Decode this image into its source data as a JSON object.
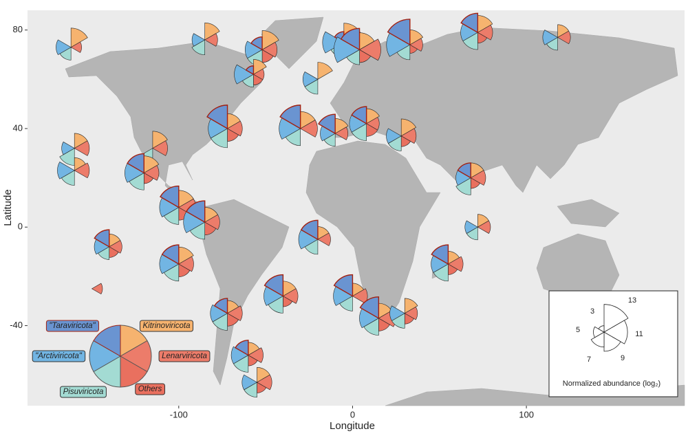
{
  "chart_data": {
    "type": "map",
    "xlabel": "Longitude",
    "ylabel": "Latitude",
    "xlim": [
      -187,
      191
    ],
    "ylim": [
      -72.5,
      88
    ],
    "xticks": [
      -100,
      0,
      100
    ],
    "yticks": [
      -40,
      0,
      40,
      80
    ],
    "categories": [
      "Kitrinoviricota",
      "Lenarviricota",
      "Others",
      "Pisuviricota",
      "\"Arctiviricota\"",
      "\"Taraviricota\""
    ],
    "colors": [
      "#f6b36f",
      "#ec7c6a",
      "#e9705f",
      "#a3dbd3",
      "#72b5e3",
      "#6a94d1"
    ],
    "scale_title": "Normalized abundance (log₂)",
    "scale_values": [
      13,
      11,
      9,
      7,
      5,
      3
    ],
    "sites": [
      {
        "lon": -162,
        "lat": 73,
        "values": [
          9,
          5,
          null,
          6,
          7,
          null
        ]
      },
      {
        "lon": -85,
        "lat": 76,
        "values": [
          8,
          6,
          null,
          7,
          6,
          null
        ]
      },
      {
        "lon": -52,
        "lat": 72,
        "values": [
          9,
          7,
          6,
          8,
          8,
          6
        ]
      },
      {
        "lon": -57,
        "lat": 62,
        "values": [
          7,
          5,
          5,
          6,
          9,
          4
        ]
      },
      {
        "lon": -5,
        "lat": 75,
        "values": [
          9,
          8,
          5,
          7,
          10,
          5
        ]
      },
      {
        "lon": 4,
        "lat": 72,
        "values": [
          8,
          10,
          6,
          7,
          12,
          10
        ]
      },
      {
        "lon": 33,
        "lat": 74,
        "values": [
          7,
          6,
          4,
          7,
          11,
          12
        ]
      },
      {
        "lon": 72,
        "lat": 79,
        "values": [
          8,
          7,
          5,
          8,
          8,
          9
        ]
      },
      {
        "lon": 118,
        "lat": 77,
        "values": [
          6,
          6,
          null,
          6,
          7,
          null
        ]
      },
      {
        "lon": -20,
        "lat": 60,
        "values": [
          8,
          null,
          null,
          7,
          7,
          null
        ]
      },
      {
        "lon": -72,
        "lat": 40,
        "values": [
          7,
          7,
          6,
          9,
          9,
          11
        ]
      },
      {
        "lon": -30,
        "lat": 40,
        "values": [
          8,
          8,
          null,
          8,
          10,
          11
        ]
      },
      {
        "lon": -10,
        "lat": 38,
        "values": [
          7,
          6,
          null,
          6,
          7,
          9
        ]
      },
      {
        "lon": 8,
        "lat": 42,
        "values": [
          7,
          6,
          6,
          8,
          8,
          8
        ]
      },
      {
        "lon": 28,
        "lat": 37,
        "values": [
          8,
          7,
          5,
          7,
          7,
          null
        ]
      },
      {
        "lon": -160,
        "lat": 32,
        "values": [
          7,
          7,
          null,
          8,
          6,
          null
        ]
      },
      {
        "lon": -160,
        "lat": 23,
        "values": [
          6,
          7,
          null,
          7,
          8,
          null
        ]
      },
      {
        "lon": -115,
        "lat": 32,
        "values": [
          8,
          7,
          null,
          7,
          null,
          null
        ]
      },
      {
        "lon": -120,
        "lat": 22,
        "values": [
          8,
          7,
          5,
          8,
          9,
          9
        ]
      },
      {
        "lon": -100,
        "lat": 8,
        "values": [
          8,
          8,
          6,
          8,
          9,
          10
        ]
      },
      {
        "lon": -85,
        "lat": 2,
        "values": [
          7,
          7,
          6,
          8,
          10,
          10
        ]
      },
      {
        "lon": -140,
        "lat": -8,
        "values": [
          6,
          6,
          5,
          6,
          7,
          8
        ]
      },
      {
        "lon": -100,
        "lat": -15,
        "values": [
          8,
          7,
          6,
          8,
          9,
          9
        ]
      },
      {
        "lon": -72,
        "lat": -35,
        "values": [
          6,
          7,
          6,
          8,
          8,
          7
        ]
      },
      {
        "lon": -40,
        "lat": -28,
        "values": [
          7,
          7,
          5,
          8,
          9,
          10
        ]
      },
      {
        "lon": -20,
        "lat": -5,
        "values": [
          6,
          6,
          null,
          7,
          9,
          9
        ]
      },
      {
        "lon": 0,
        "lat": -28,
        "values": [
          6,
          7,
          null,
          7,
          9,
          10
        ]
      },
      {
        "lon": 15,
        "lat": -37,
        "values": [
          7,
          8,
          6,
          8,
          9,
          10
        ]
      },
      {
        "lon": 30,
        "lat": -35,
        "values": [
          7,
          6,
          5,
          7,
          7,
          null
        ]
      },
      {
        "lon": 55,
        "lat": -15,
        "values": [
          6,
          7,
          5,
          8,
          8,
          9
        ]
      },
      {
        "lon": 72,
        "lat": 0,
        "values": [
          6,
          6,
          null,
          6,
          6,
          null
        ]
      },
      {
        "lon": 68,
        "lat": 20,
        "values": [
          7,
          7,
          5,
          8,
          7,
          7
        ]
      },
      {
        "lon": -60,
        "lat": -52,
        "values": [
          6,
          7,
          5,
          8,
          8,
          7
        ]
      },
      {
        "lon": -55,
        "lat": -63,
        "values": [
          7,
          7,
          5,
          7,
          7,
          null
        ]
      },
      {
        "lon": -150,
        "lat": -25,
        "values": [
          null,
          5,
          null,
          null,
          null,
          null
        ]
      }
    ]
  }
}
